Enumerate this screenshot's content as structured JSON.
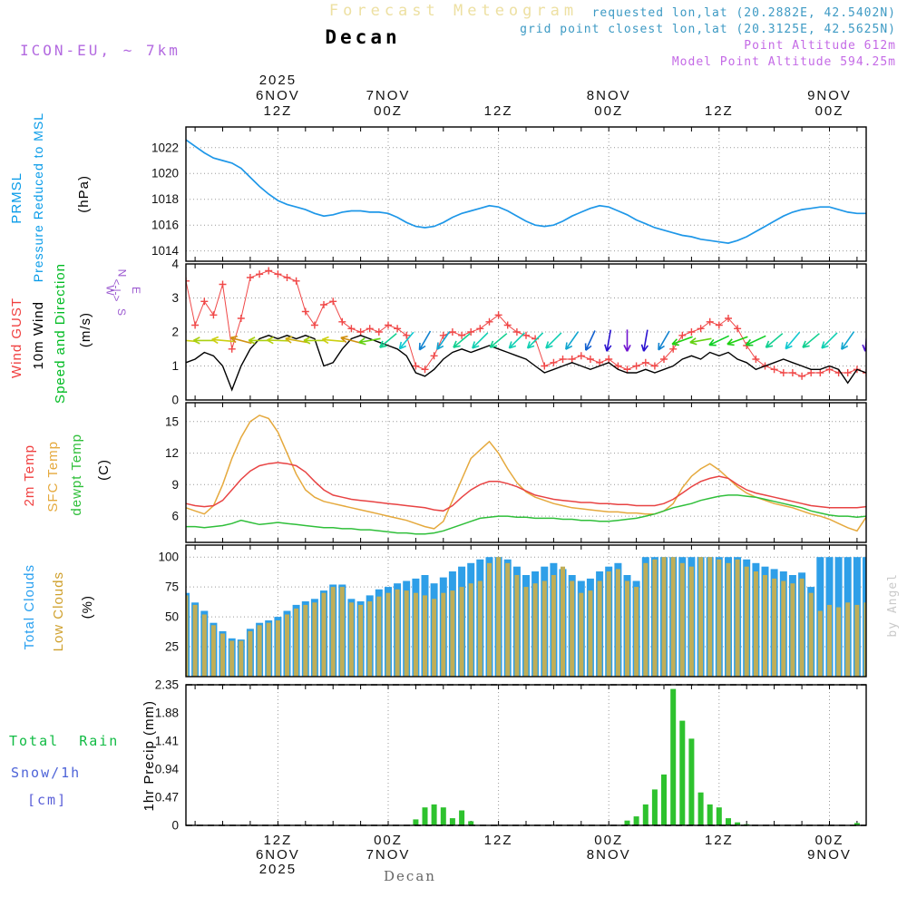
{
  "header": {
    "title": "Forecast Meteogram",
    "station": "Decan",
    "model": "ICON-EU, ~ 7km",
    "requested_line": "requested lon,lat (20.2882E, 42.5402N)",
    "grid_line": "grid point closest lon,lat (20.3125E, 42.5625N)",
    "point_altitude": "Point Altitude 612m",
    "model_point_altitude": "Model Point Altitude 594.25m"
  },
  "footer": {
    "station": "Decan"
  },
  "credit": "by Angel",
  "labels": {
    "pressure": {
      "l1": "PRMSL",
      "l2": "Pressure Reduced to MSL",
      "unit": "(hPa)"
    },
    "wind": {
      "l1": "Wind GUST",
      "l2": "10m Wind",
      "l3": "Speed and Direction",
      "unit": "(m/s)",
      "compass": {
        "n": "N",
        "s": "S",
        "e": "E",
        "w": "W",
        "axis": "<-|->"
      }
    },
    "temp": {
      "l1": "2m Temp",
      "l2": "SFC Temp",
      "l3": "dewpt Temp",
      "unit": "(C)"
    },
    "clouds": {
      "l1": "Total Clouds",
      "l2": "Low Clouds",
      "unit": "(%)"
    },
    "precip": {
      "l1": "Total  Rain",
      "l2": "Snow/1h",
      "l3": "[cm]",
      "unit": "1hr Precip (mm)"
    }
  },
  "colors": {
    "title": "#ede0a2",
    "model_label": "#b36ae0",
    "coords": "#3d9ac4",
    "altitude": "#c46ae6",
    "pressure_line": "#1e97e8",
    "gust": "#f04848",
    "wind_speed": "#000000",
    "wind_dir_label": "#9b59d0",
    "temp_2m": "#e84343",
    "temp_sfc": "#e5a93d",
    "temp_dew": "#2fbf3a",
    "cloud_total": "#2e9fe8",
    "cloud_low": "#bfae58",
    "precip_bar": "#2ec22e",
    "rain_label": "#11bb44",
    "snow_label": "#4d63d8",
    "grid": "#999999"
  },
  "time_axis": {
    "hours_total": 74,
    "minor_step": 3,
    "ticks": [
      {
        "h": 10,
        "hour": "12Z",
        "day": "6NOV",
        "year": "2025"
      },
      {
        "h": 22,
        "hour": "00Z",
        "day": "7NOV",
        "year": ""
      },
      {
        "h": 34,
        "hour": "12Z",
        "day": "",
        "year": ""
      },
      {
        "h": 46,
        "hour": "00Z",
        "day": "8NOV",
        "year": ""
      },
      {
        "h": 58,
        "hour": "12Z",
        "day": "",
        "year": ""
      },
      {
        "h": 70,
        "hour": "00Z",
        "day": "9NOV",
        "year": ""
      }
    ]
  },
  "chart_data": [
    {
      "id": "pressure",
      "type": "line",
      "title": "Pressure Reduced to MSL",
      "ylabel": "(hPa)",
      "ylim": [
        1013.2,
        1023.6
      ],
      "yticks": [
        1014,
        1016,
        1018,
        1020,
        1022
      ],
      "hgrid": true,
      "series": [
        {
          "name": "PRMSL",
          "color_key": "pressure_line",
          "values": [
            1022.6,
            1022.1,
            1021.6,
            1021.2,
            1021.0,
            1020.8,
            1020.4,
            1019.7,
            1019.0,
            1018.4,
            1017.9,
            1017.6,
            1017.4,
            1017.2,
            1016.9,
            1016.7,
            1016.8,
            1017.0,
            1017.1,
            1017.1,
            1017.0,
            1017.0,
            1016.9,
            1016.6,
            1016.2,
            1015.9,
            1015.8,
            1015.9,
            1016.2,
            1016.6,
            1016.9,
            1017.1,
            1017.3,
            1017.5,
            1017.4,
            1017.1,
            1016.7,
            1016.3,
            1016.0,
            1015.9,
            1016.0,
            1016.3,
            1016.7,
            1017.0,
            1017.3,
            1017.5,
            1017.4,
            1017.1,
            1016.8,
            1016.4,
            1016.1,
            1015.8,
            1015.6,
            1015.4,
            1015.2,
            1015.1,
            1014.9,
            1014.8,
            1014.7,
            1014.6,
            1014.8,
            1015.1,
            1015.5,
            1015.9,
            1016.3,
            1016.7,
            1017.0,
            1017.2,
            1017.3,
            1017.4,
            1017.4,
            1017.2,
            1017.0,
            1016.9,
            1016.9
          ]
        }
      ]
    },
    {
      "id": "wind",
      "type": "line",
      "title": "10m Wind Speed and Direction, Wind GUST",
      "ylabel": "(m/s)",
      "ylim": [
        0,
        4
      ],
      "yticks": [
        0,
        1,
        2,
        3,
        4
      ],
      "hgrid": true,
      "vector_y": 1.75,
      "series": [
        {
          "name": "Wind GUST",
          "marker": "+",
          "color_key": "gust",
          "values": [
            3.5,
            2.2,
            2.9,
            2.5,
            3.4,
            1.5,
            2.4,
            3.6,
            3.7,
            3.8,
            3.7,
            3.6,
            3.5,
            2.6,
            2.2,
            2.8,
            2.9,
            2.3,
            2.1,
            2.0,
            2.1,
            2.0,
            2.2,
            2.1,
            1.9,
            1.0,
            0.9,
            1.3,
            1.9,
            2.0,
            1.9,
            2.0,
            2.1,
            2.3,
            2.5,
            2.2,
            2.0,
            1.9,
            1.8,
            1.0,
            1.1,
            1.2,
            1.2,
            1.3,
            1.2,
            1.1,
            1.2,
            1.0,
            0.9,
            1.0,
            1.1,
            1.0,
            1.2,
            1.5,
            1.9,
            2.0,
            2.1,
            2.3,
            2.2,
            2.4,
            2.1,
            1.6,
            1.2,
            1.0,
            0.9,
            0.8,
            0.8,
            0.7,
            0.8,
            0.8,
            0.9,
            0.8,
            0.8,
            0.9,
            0.8
          ]
        },
        {
          "name": "10m Wind Speed",
          "color_key": "wind_speed",
          "values": [
            1.1,
            1.2,
            1.4,
            1.3,
            1.0,
            0.3,
            1.0,
            1.5,
            1.8,
            1.9,
            1.8,
            1.9,
            1.8,
            1.9,
            1.8,
            1.0,
            1.1,
            1.5,
            1.8,
            1.9,
            1.8,
            1.7,
            1.6,
            1.5,
            1.3,
            0.8,
            0.7,
            0.9,
            1.2,
            1.4,
            1.5,
            1.4,
            1.5,
            1.6,
            1.5,
            1.4,
            1.3,
            1.2,
            1.0,
            0.8,
            0.9,
            1.0,
            1.1,
            1.0,
            0.9,
            1.0,
            1.1,
            0.9,
            0.8,
            0.8,
            0.9,
            0.8,
            0.9,
            1.0,
            1.2,
            1.3,
            1.2,
            1.4,
            1.3,
            1.4,
            1.2,
            1.1,
            0.9,
            1.0,
            1.1,
            1.2,
            1.1,
            1.0,
            0.9,
            0.9,
            1.0,
            0.9,
            0.5,
            0.9,
            0.8
          ]
        }
      ],
      "direction_deg": [
        95,
        100,
        90,
        85,
        95,
        100,
        105,
        95,
        90,
        88,
        92,
        96,
        100,
        95,
        90,
        85,
        95,
        100,
        105,
        100,
        80,
        60,
        50,
        45,
        40,
        35,
        30,
        25,
        35,
        45,
        50,
        45,
        45,
        40,
        50,
        55,
        45,
        40,
        45,
        50,
        45,
        40,
        35,
        30,
        25,
        20,
        10,
        5,
        0,
        355,
        10,
        20,
        30,
        45,
        70,
        75,
        80,
        70,
        65,
        60,
        70,
        75,
        65,
        60,
        50,
        45,
        40,
        45,
        50,
        55,
        45,
        40,
        35,
        10,
        5
      ]
    },
    {
      "id": "temp",
      "type": "line",
      "title": "2m Temp, SFC Temp, dewpt Temp",
      "ylabel": "(C)",
      "ylim": [
        3.5,
        16.8
      ],
      "yticks": [
        6,
        9,
        12,
        15
      ],
      "hgrid": true,
      "series": [
        {
          "name": "2m Temp",
          "color_key": "temp_2m",
          "values": [
            7.2,
            7.0,
            6.9,
            7.0,
            7.5,
            8.5,
            9.5,
            10.3,
            10.8,
            11.0,
            11.1,
            11.0,
            10.8,
            10.2,
            9.3,
            8.5,
            8.0,
            7.8,
            7.6,
            7.5,
            7.4,
            7.3,
            7.2,
            7.1,
            7.0,
            6.9,
            6.8,
            6.6,
            6.5,
            7.0,
            7.8,
            8.5,
            9.0,
            9.3,
            9.3,
            9.1,
            8.8,
            8.4,
            8.0,
            7.8,
            7.6,
            7.5,
            7.4,
            7.3,
            7.3,
            7.2,
            7.2,
            7.1,
            7.1,
            7.0,
            7.0,
            7.0,
            7.2,
            7.6,
            8.2,
            8.8,
            9.3,
            9.6,
            9.8,
            9.6,
            9.0,
            8.5,
            8.2,
            8.0,
            7.8,
            7.6,
            7.4,
            7.2,
            7.0,
            6.9,
            6.8,
            6.8,
            6.8,
            6.8,
            6.9
          ]
        },
        {
          "name": "SFC Temp",
          "color_key": "temp_sfc",
          "values": [
            6.8,
            6.5,
            6.2,
            7.0,
            9.0,
            11.5,
            13.5,
            15.0,
            15.6,
            15.3,
            14.0,
            12.0,
            10.0,
            8.5,
            7.8,
            7.4,
            7.2,
            7.0,
            6.8,
            6.6,
            6.4,
            6.2,
            6.0,
            5.8,
            5.6,
            5.3,
            5.0,
            4.8,
            5.5,
            7.5,
            9.5,
            11.5,
            12.3,
            13.1,
            12.0,
            10.5,
            9.2,
            8.3,
            7.8,
            7.5,
            7.2,
            7.0,
            6.8,
            6.7,
            6.6,
            6.5,
            6.4,
            6.4,
            6.3,
            6.3,
            6.2,
            6.2,
            6.5,
            7.2,
            8.7,
            9.8,
            10.5,
            11.0,
            10.4,
            9.6,
            8.8,
            8.2,
            7.8,
            7.5,
            7.2,
            7.0,
            6.8,
            6.5,
            6.2,
            6.0,
            5.7,
            5.3,
            4.9,
            4.6,
            5.9
          ]
        },
        {
          "name": "dewpt Temp",
          "color_key": "temp_dew",
          "values": [
            5.0,
            5.0,
            4.9,
            5.0,
            5.1,
            5.3,
            5.6,
            5.4,
            5.2,
            5.3,
            5.4,
            5.3,
            5.2,
            5.1,
            5.0,
            4.9,
            4.9,
            4.8,
            4.8,
            4.7,
            4.7,
            4.6,
            4.5,
            4.4,
            4.4,
            4.3,
            4.3,
            4.4,
            4.6,
            4.9,
            5.2,
            5.5,
            5.8,
            5.9,
            6.0,
            6.0,
            5.9,
            5.9,
            5.8,
            5.8,
            5.8,
            5.7,
            5.7,
            5.6,
            5.6,
            5.5,
            5.5,
            5.6,
            5.7,
            5.8,
            6.0,
            6.2,
            6.5,
            6.8,
            7.0,
            7.2,
            7.5,
            7.7,
            7.9,
            8.0,
            8.0,
            7.9,
            7.8,
            7.6,
            7.4,
            7.2,
            7.0,
            6.8,
            6.5,
            6.3,
            6.1,
            6.0,
            6.0,
            5.9,
            6.0
          ]
        }
      ]
    },
    {
      "id": "clouds",
      "type": "bar",
      "title": "Total Clouds / Low Clouds",
      "ylabel": "(%)",
      "ylim": [
        0,
        110
      ],
      "yticks": [
        25,
        50,
        75,
        100
      ],
      "hgrid": true,
      "series": [
        {
          "name": "Total Clouds",
          "color_key": "cloud_total",
          "values": [
            70,
            62,
            55,
            45,
            38,
            32,
            31,
            40,
            45,
            47,
            50,
            55,
            60,
            63,
            65,
            72,
            77,
            77,
            65,
            63,
            68,
            73,
            75,
            78,
            80,
            82,
            85,
            78,
            83,
            88,
            92,
            95,
            98,
            100,
            100,
            98,
            92,
            85,
            88,
            92,
            95,
            90,
            85,
            80,
            82,
            88,
            92,
            95,
            85,
            80,
            100,
            100,
            100,
            100,
            100,
            100,
            100,
            100,
            100,
            100,
            100,
            98,
            95,
            92,
            90,
            88,
            85,
            87,
            75,
            100,
            100,
            100,
            100,
            100,
            100
          ]
        },
        {
          "name": "Low Clouds",
          "color_key": "cloud_low",
          "values": [
            68,
            60,
            52,
            43,
            36,
            30,
            30,
            38,
            43,
            45,
            47,
            52,
            57,
            60,
            62,
            70,
            75,
            75,
            62,
            60,
            63,
            67,
            70,
            73,
            72,
            70,
            68,
            65,
            70,
            72,
            75,
            78,
            80,
            95,
            100,
            95,
            85,
            75,
            78,
            80,
            85,
            92,
            80,
            70,
            72,
            80,
            88,
            90,
            80,
            75,
            95,
            98,
            100,
            100,
            95,
            92,
            100,
            100,
            98,
            95,
            98,
            92,
            88,
            85,
            82,
            80,
            78,
            82,
            70,
            55,
            60,
            58,
            62,
            60,
            62
          ]
        }
      ]
    },
    {
      "id": "precip",
      "type": "bar",
      "title": "Total Rain / Snow per 1h",
      "ylabel": "1hr Precip (mm)",
      "ylim": [
        0,
        2.35
      ],
      "yticks": [
        0,
        0.47,
        0.94,
        1.41,
        1.88,
        2.35
      ],
      "hgrid": false,
      "series": [
        {
          "name": "Total Rain",
          "color_key": "precip_bar",
          "values": [
            0,
            0,
            0,
            0,
            0,
            0,
            0,
            0,
            0,
            0,
            0,
            0,
            0,
            0,
            0,
            0,
            0,
            0,
            0,
            0,
            0,
            0,
            0,
            0,
            0,
            0.1,
            0.3,
            0.35,
            0.3,
            0.12,
            0.25,
            0.07,
            0,
            0,
            0,
            0,
            0,
            0,
            0,
            0,
            0,
            0,
            0,
            0,
            0,
            0,
            0,
            0,
            0.08,
            0.15,
            0.35,
            0.6,
            0.85,
            2.28,
            1.75,
            1.45,
            0.55,
            0.35,
            0.3,
            0.12,
            0.05,
            0.02,
            0,
            0,
            0,
            0,
            0,
            0,
            0,
            0,
            0,
            0,
            0,
            0.04,
            0
          ]
        }
      ]
    }
  ]
}
